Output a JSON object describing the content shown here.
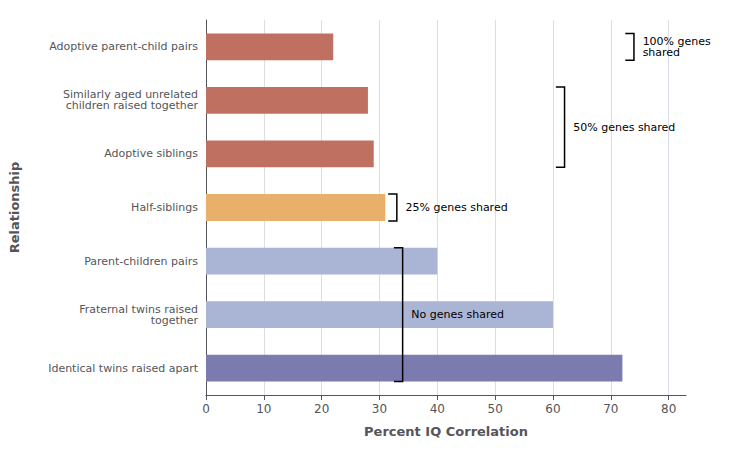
{
  "chart_data": {
    "type": "bar",
    "orientation": "horizontal",
    "categories": [
      "Adoptive parent-child pairs",
      "Similarly aged unrelated\nchildren raised together",
      "Adoptive siblings",
      "Half-siblings",
      "Parent-children pairs",
      "Fraternal twins raised\ntogether",
      "Identical twins raised apart"
    ],
    "values": [
      22,
      28,
      29,
      31,
      40,
      60,
      72
    ],
    "colors": [
      "#c07060",
      "#c07060",
      "#c07060",
      "#e8b06a",
      "#aab4d4",
      "#aab4d4",
      "#7b7bb0"
    ],
    "xlabel": "Percent IQ Correlation",
    "ylabel": "Relationship",
    "xlim": [
      0,
      83
    ],
    "xticks": [
      0,
      10,
      20,
      30,
      40,
      50,
      60,
      70,
      80
    ],
    "grid": true,
    "annotations": [
      {
        "text": "No genes shared",
        "categories": [
          "Identical twins raised apart",
          "Fraternal twins raised\ntogether",
          "Parent-children pairs"
        ],
        "x": 34
      },
      {
        "text": "25% genes shared",
        "categories": [
          "Half-siblings"
        ],
        "x": 33
      },
      {
        "text": "50% genes shared",
        "categories": [
          "Adoptive siblings",
          "Similarly aged unrelated\nchildren raised together"
        ],
        "x": 62
      },
      {
        "text": "100% genes\nshared",
        "categories": [
          "Adoptive parent-child pairs"
        ],
        "x": 74
      }
    ]
  }
}
